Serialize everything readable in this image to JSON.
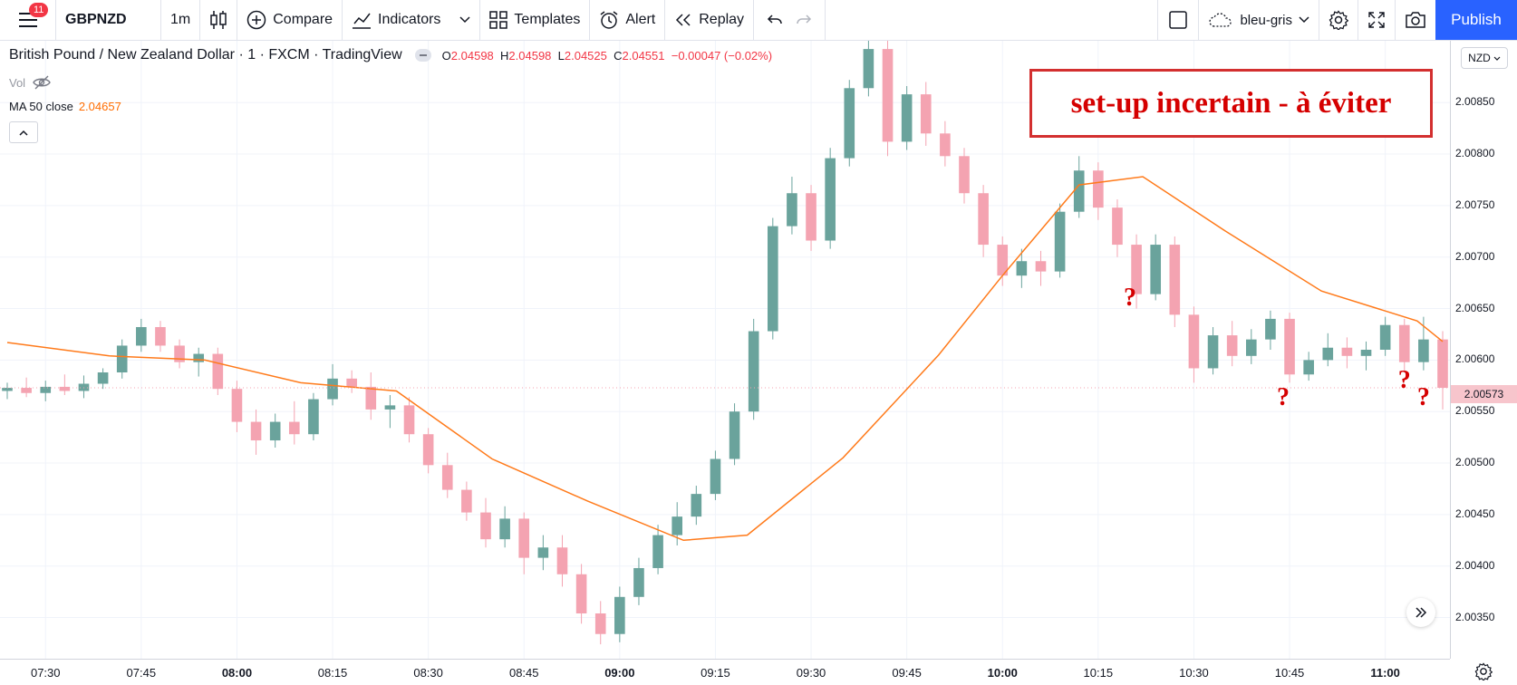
{
  "toolbar": {
    "menu_badge": "11",
    "symbol": "GBPNZD",
    "interval": "1m",
    "compare": "Compare",
    "indicators": "Indicators",
    "templates": "Templates",
    "alert": "Alert",
    "replay": "Replay",
    "layout_name": "bleu-gris",
    "publish": "Publish"
  },
  "legend": {
    "title": "British Pound / New Zealand Dollar · 1 · FXCM · TradingView",
    "o_label": "O",
    "o": "2.04598",
    "h_label": "H",
    "h": "2.04598",
    "l_label": "L",
    "l": "2.04525",
    "c_label": "C",
    "c": "2.04551",
    "change": "−0.00047 (−0.02%)",
    "vol": "Vol",
    "ma_label": "MA 50 close",
    "ma_value": "2.04657"
  },
  "annotation": {
    "text": "set-up incertain - à éviter",
    "question_mark": "?"
  },
  "currency": "NZD",
  "last_price": "2.00573",
  "colors": {
    "up": "#6aa39c",
    "down": "#f4a3b1",
    "ma": "#ff7a1a",
    "accent": "#2962ff",
    "annotation": "#d50000"
  },
  "chart_data": {
    "type": "candlestick",
    "y_ticks": [
      "2.00850",
      "2.00800",
      "2.00750",
      "2.00700",
      "2.00650",
      "2.00600",
      "2.00550",
      "2.00500",
      "2.00450",
      "2.00400",
      "2.00350"
    ],
    "x_ticks": [
      "07:30",
      "07:45",
      "08:00",
      "08:15",
      "08:30",
      "08:45",
      "09:00",
      "09:15",
      "09:30",
      "09:45",
      "10:00",
      "10:15",
      "10:30",
      "10:45",
      "11:00"
    ],
    "bold_ticks": [
      "08:00",
      "09:00",
      "10:00",
      "11:00"
    ],
    "ylim": [
      2.0031,
      2.0091
    ],
    "x_start": "07:24",
    "x_end": "11:09",
    "question_marks_at": [
      {
        "time": "10:20",
        "price": 2.00658
      },
      {
        "time": "10:44",
        "price": 2.00562
      },
      {
        "time": "11:03",
        "price": 2.00578
      },
      {
        "time": "11:06",
        "price": 2.00562
      }
    ],
    "ma50": [
      [
        "07:24",
        2.00617
      ],
      [
        "07:40",
        2.00604
      ],
      [
        "07:55",
        2.006
      ],
      [
        "08:10",
        2.00578
      ],
      [
        "08:25",
        2.0057
      ],
      [
        "08:40",
        2.00504
      ],
      [
        "08:55",
        2.00463
      ],
      [
        "09:10",
        2.00425
      ],
      [
        "09:20",
        2.0043
      ],
      [
        "09:35",
        2.00505
      ],
      [
        "09:50",
        2.00605
      ],
      [
        "10:00",
        2.00682
      ],
      [
        "10:12",
        2.0077
      ],
      [
        "10:22",
        2.00778
      ],
      [
        "10:35",
        2.00725
      ],
      [
        "10:50",
        2.00667
      ],
      [
        "11:05",
        2.00638
      ],
      [
        "11:09",
        2.00618
      ]
    ],
    "candles": [
      {
        "t": "07:24",
        "o": 2.0057,
        "h": 2.00578,
        "l": 2.00562,
        "c": 2.00573
      },
      {
        "t": "07:27",
        "o": 2.00573,
        "h": 2.00583,
        "l": 2.00564,
        "c": 2.00568
      },
      {
        "t": "07:30",
        "o": 2.00568,
        "h": 2.0058,
        "l": 2.0056,
        "c": 2.00574
      },
      {
        "t": "07:33",
        "o": 2.00574,
        "h": 2.00586,
        "l": 2.00566,
        "c": 2.0057
      },
      {
        "t": "07:36",
        "o": 2.0057,
        "h": 2.00585,
        "l": 2.00563,
        "c": 2.00577
      },
      {
        "t": "07:39",
        "o": 2.00577,
        "h": 2.00592,
        "l": 2.00572,
        "c": 2.00588
      },
      {
        "t": "07:42",
        "o": 2.00588,
        "h": 2.0062,
        "l": 2.00582,
        "c": 2.00614
      },
      {
        "t": "07:45",
        "o": 2.00614,
        "h": 2.0064,
        "l": 2.00608,
        "c": 2.00632
      },
      {
        "t": "07:48",
        "o": 2.00632,
        "h": 2.00638,
        "l": 2.00608,
        "c": 2.00614
      },
      {
        "t": "07:51",
        "o": 2.00614,
        "h": 2.0062,
        "l": 2.00592,
        "c": 2.00598
      },
      {
        "t": "07:54",
        "o": 2.00598,
        "h": 2.00612,
        "l": 2.00584,
        "c": 2.00606
      },
      {
        "t": "07:57",
        "o": 2.00606,
        "h": 2.00612,
        "l": 2.00566,
        "c": 2.00572
      },
      {
        "t": "08:00",
        "o": 2.00572,
        "h": 2.0058,
        "l": 2.0053,
        "c": 2.0054
      },
      {
        "t": "08:03",
        "o": 2.0054,
        "h": 2.00552,
        "l": 2.00508,
        "c": 2.00522
      },
      {
        "t": "08:06",
        "o": 2.00522,
        "h": 2.00548,
        "l": 2.00515,
        "c": 2.0054
      },
      {
        "t": "08:09",
        "o": 2.0054,
        "h": 2.0056,
        "l": 2.00518,
        "c": 2.00528
      },
      {
        "t": "08:12",
        "o": 2.00528,
        "h": 2.00568,
        "l": 2.00522,
        "c": 2.00562
      },
      {
        "t": "08:15",
        "o": 2.00562,
        "h": 2.00596,
        "l": 2.00556,
        "c": 2.00582
      },
      {
        "t": "08:18",
        "o": 2.00582,
        "h": 2.0059,
        "l": 2.00568,
        "c": 2.00574
      },
      {
        "t": "08:21",
        "o": 2.00574,
        "h": 2.00588,
        "l": 2.00542,
        "c": 2.00552
      },
      {
        "t": "08:24",
        "o": 2.00552,
        "h": 2.00566,
        "l": 2.00534,
        "c": 2.00556
      },
      {
        "t": "08:27",
        "o": 2.00556,
        "h": 2.00564,
        "l": 2.0052,
        "c": 2.00528
      },
      {
        "t": "08:30",
        "o": 2.00528,
        "h": 2.00534,
        "l": 2.0049,
        "c": 2.00498
      },
      {
        "t": "08:33",
        "o": 2.00498,
        "h": 2.0051,
        "l": 2.00466,
        "c": 2.00474
      },
      {
        "t": "08:36",
        "o": 2.00474,
        "h": 2.00482,
        "l": 2.00444,
        "c": 2.00452
      },
      {
        "t": "08:39",
        "o": 2.00452,
        "h": 2.00466,
        "l": 2.00418,
        "c": 2.00426
      },
      {
        "t": "08:42",
        "o": 2.00426,
        "h": 2.00458,
        "l": 2.00418,
        "c": 2.00446
      },
      {
        "t": "08:45",
        "o": 2.00446,
        "h": 2.00452,
        "l": 2.00392,
        "c": 2.00408
      },
      {
        "t": "08:48",
        "o": 2.00408,
        "h": 2.0043,
        "l": 2.00396,
        "c": 2.00418
      },
      {
        "t": "08:51",
        "o": 2.00418,
        "h": 2.0043,
        "l": 2.0038,
        "c": 2.00392
      },
      {
        "t": "08:54",
        "o": 2.00392,
        "h": 2.00402,
        "l": 2.00344,
        "c": 2.00354
      },
      {
        "t": "08:57",
        "o": 2.00354,
        "h": 2.00366,
        "l": 2.00324,
        "c": 2.00334
      },
      {
        "t": "09:00",
        "o": 2.00334,
        "h": 2.0038,
        "l": 2.00326,
        "c": 2.0037
      },
      {
        "t": "09:03",
        "o": 2.0037,
        "h": 2.00408,
        "l": 2.00362,
        "c": 2.00398
      },
      {
        "t": "09:06",
        "o": 2.00398,
        "h": 2.0044,
        "l": 2.00392,
        "c": 2.0043
      },
      {
        "t": "09:09",
        "o": 2.0043,
        "h": 2.00462,
        "l": 2.0042,
        "c": 2.00448
      },
      {
        "t": "09:12",
        "o": 2.00448,
        "h": 2.00478,
        "l": 2.0044,
        "c": 2.0047
      },
      {
        "t": "09:15",
        "o": 2.0047,
        "h": 2.00512,
        "l": 2.00464,
        "c": 2.00504
      },
      {
        "t": "09:18",
        "o": 2.00504,
        "h": 2.00558,
        "l": 2.00498,
        "c": 2.0055
      },
      {
        "t": "09:21",
        "o": 2.0055,
        "h": 2.0064,
        "l": 2.00542,
        "c": 2.00628
      },
      {
        "t": "09:24",
        "o": 2.00628,
        "h": 2.00738,
        "l": 2.0062,
        "c": 2.0073
      },
      {
        "t": "09:27",
        "o": 2.0073,
        "h": 2.00778,
        "l": 2.00722,
        "c": 2.00762
      },
      {
        "t": "09:30",
        "o": 2.00762,
        "h": 2.0077,
        "l": 2.00706,
        "c": 2.00716
      },
      {
        "t": "09:33",
        "o": 2.00716,
        "h": 2.00806,
        "l": 2.00708,
        "c": 2.00796
      },
      {
        "t": "09:36",
        "o": 2.00796,
        "h": 2.00872,
        "l": 2.00788,
        "c": 2.00864
      },
      {
        "t": "09:39",
        "o": 2.00864,
        "h": 2.00912,
        "l": 2.00856,
        "c": 2.00902
      },
      {
        "t": "09:42",
        "o": 2.00902,
        "h": 2.0091,
        "l": 2.00798,
        "c": 2.00812
      },
      {
        "t": "09:45",
        "o": 2.00812,
        "h": 2.00866,
        "l": 2.00804,
        "c": 2.00858
      },
      {
        "t": "09:48",
        "o": 2.00858,
        "h": 2.0087,
        "l": 2.00808,
        "c": 2.0082
      },
      {
        "t": "09:51",
        "o": 2.0082,
        "h": 2.00832,
        "l": 2.00788,
        "c": 2.00798
      },
      {
        "t": "09:54",
        "o": 2.00798,
        "h": 2.00806,
        "l": 2.00752,
        "c": 2.00762
      },
      {
        "t": "09:57",
        "o": 2.00762,
        "h": 2.0077,
        "l": 2.007,
        "c": 2.00712
      },
      {
        "t": "10:00",
        "o": 2.00712,
        "h": 2.0072,
        "l": 2.00672,
        "c": 2.00682
      },
      {
        "t": "10:03",
        "o": 2.00682,
        "h": 2.00708,
        "l": 2.0067,
        "c": 2.00696
      },
      {
        "t": "10:06",
        "o": 2.00696,
        "h": 2.00706,
        "l": 2.00672,
        "c": 2.00686
      },
      {
        "t": "10:09",
        "o": 2.00686,
        "h": 2.00752,
        "l": 2.0068,
        "c": 2.00744
      },
      {
        "t": "10:12",
        "o": 2.00744,
        "h": 2.00798,
        "l": 2.00738,
        "c": 2.00784
      },
      {
        "t": "10:15",
        "o": 2.00784,
        "h": 2.00792,
        "l": 2.00736,
        "c": 2.00748
      },
      {
        "t": "10:18",
        "o": 2.00748,
        "h": 2.00756,
        "l": 2.007,
        "c": 2.00712
      },
      {
        "t": "10:21",
        "o": 2.00712,
        "h": 2.00722,
        "l": 2.0065,
        "c": 2.00664
      },
      {
        "t": "10:24",
        "o": 2.00664,
        "h": 2.00722,
        "l": 2.00658,
        "c": 2.00712
      },
      {
        "t": "10:27",
        "o": 2.00712,
        "h": 2.0072,
        "l": 2.00632,
        "c": 2.00644
      },
      {
        "t": "10:30",
        "o": 2.00644,
        "h": 2.00652,
        "l": 2.00578,
        "c": 2.00592
      },
      {
        "t": "10:33",
        "o": 2.00592,
        "h": 2.00632,
        "l": 2.00586,
        "c": 2.00624
      },
      {
        "t": "10:36",
        "o": 2.00624,
        "h": 2.00638,
        "l": 2.00594,
        "c": 2.00604
      },
      {
        "t": "10:39",
        "o": 2.00604,
        "h": 2.0063,
        "l": 2.00596,
        "c": 2.0062
      },
      {
        "t": "10:42",
        "o": 2.0062,
        "h": 2.00648,
        "l": 2.0061,
        "c": 2.0064
      },
      {
        "t": "10:45",
        "o": 2.0064,
        "h": 2.00646,
        "l": 2.00578,
        "c": 2.00586
      },
      {
        "t": "10:48",
        "o": 2.00586,
        "h": 2.00608,
        "l": 2.0058,
        "c": 2.006
      },
      {
        "t": "10:51",
        "o": 2.006,
        "h": 2.00626,
        "l": 2.00594,
        "c": 2.00612
      },
      {
        "t": "10:54",
        "o": 2.00612,
        "h": 2.00622,
        "l": 2.00592,
        "c": 2.00604
      },
      {
        "t": "10:57",
        "o": 2.00604,
        "h": 2.00618,
        "l": 2.0059,
        "c": 2.0061
      },
      {
        "t": "11:00",
        "o": 2.0061,
        "h": 2.00642,
        "l": 2.00604,
        "c": 2.00634
      },
      {
        "t": "11:03",
        "o": 2.00634,
        "h": 2.0064,
        "l": 2.00588,
        "c": 2.00598
      },
      {
        "t": "11:06",
        "o": 2.00598,
        "h": 2.00642,
        "l": 2.0059,
        "c": 2.0062
      },
      {
        "t": "11:09",
        "o": 2.0062,
        "h": 2.00628,
        "l": 2.00552,
        "c": 2.00573
      }
    ]
  }
}
